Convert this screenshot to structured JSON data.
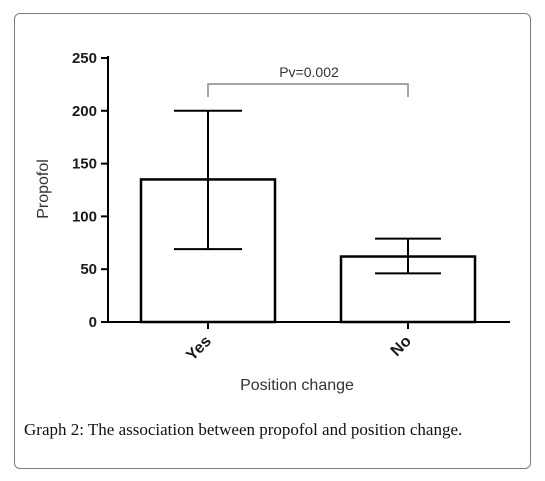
{
  "caption": "Graph 2: The association between propofol and position change.",
  "chart_data": {
    "type": "bar",
    "categories": [
      "Yes",
      "No"
    ],
    "values": [
      135,
      62
    ],
    "error_bars": [
      {
        "low": 69,
        "high": 200
      },
      {
        "low": 46,
        "high": 79
      }
    ],
    "xlabel": "Position change",
    "ylabel": "Propofol",
    "ylim": [
      0,
      250
    ],
    "yticks": [
      0,
      50,
      100,
      150,
      200,
      250
    ],
    "annotation": "Pv=0.002",
    "grid": false,
    "legend": "none",
    "bar_fill": "#ffffff",
    "stroke_color": "#000000"
  }
}
